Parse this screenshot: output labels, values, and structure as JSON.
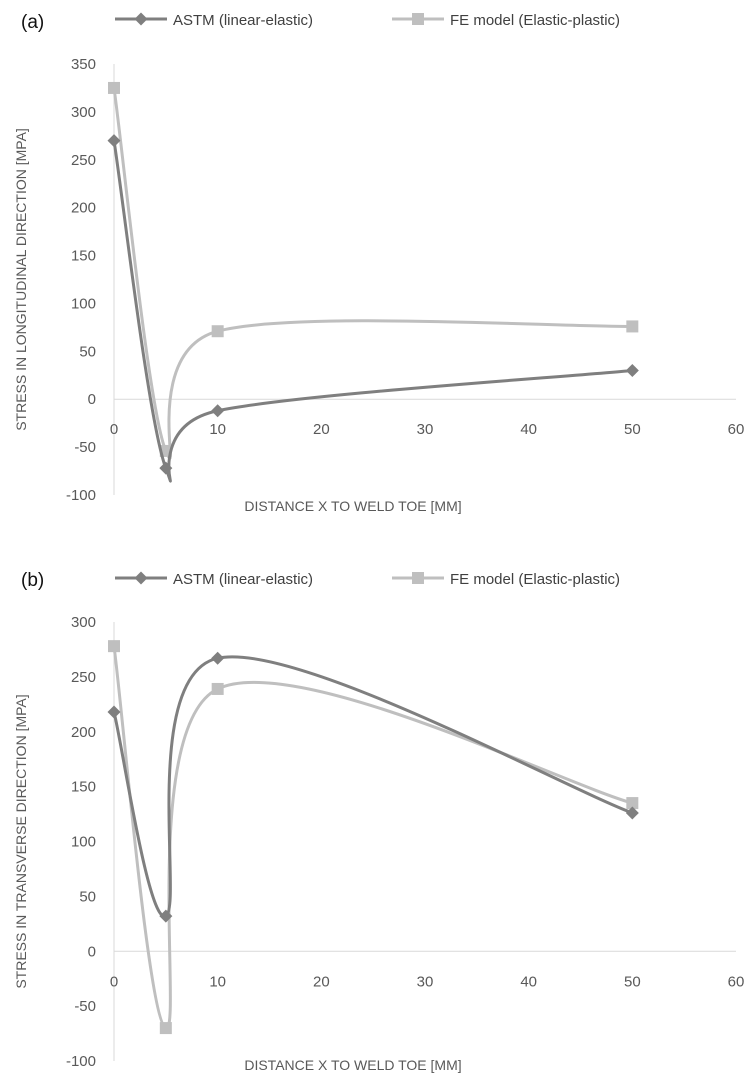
{
  "colors": {
    "astm": "#7f7f7f",
    "fe": "#bfbfbf",
    "axis": "#d9d9d9"
  },
  "chart_data": [
    {
      "panel": "(a)",
      "type": "line",
      "xlabel": "DISTANCE X TO WELD TOE [MM]",
      "ylabel": "STRESS IN LONGITUDINAL DIRECTION [MPA]",
      "xlim": [
        0,
        60
      ],
      "ylim": [
        -100,
        350
      ],
      "xticks": [
        0,
        10,
        20,
        30,
        40,
        50,
        60
      ],
      "yticks": [
        -100,
        -50,
        0,
        50,
        100,
        150,
        200,
        250,
        300,
        350
      ],
      "legend": "top",
      "grid": false,
      "smooth": true,
      "series": [
        {
          "name": "ASTM (linear-elastic)",
          "marker": "diamond",
          "x": [
            0,
            5,
            10,
            50
          ],
          "y": [
            270,
            -72,
            -12,
            30
          ]
        },
        {
          "name": "FE model (Elastic-plastic)",
          "marker": "square",
          "x": [
            0,
            5,
            10,
            50
          ],
          "y": [
            325,
            -54,
            71,
            76
          ]
        }
      ]
    },
    {
      "panel": "(b)",
      "type": "line",
      "xlabel": "DISTANCE X TO WELD TOE [MM]",
      "ylabel": "STRESS IN TRANSVERSE DIRECTION [MPA]",
      "xlim": [
        0,
        60
      ],
      "ylim": [
        -100,
        300
      ],
      "xticks": [
        0,
        10,
        20,
        30,
        40,
        50,
        60
      ],
      "yticks": [
        -100,
        -50,
        0,
        50,
        100,
        150,
        200,
        250,
        300
      ],
      "legend": "top",
      "grid": false,
      "smooth": true,
      "series": [
        {
          "name": "ASTM (linear-elastic)",
          "marker": "diamond",
          "x": [
            0,
            5,
            10,
            50
          ],
          "y": [
            218,
            32,
            267,
            126
          ]
        },
        {
          "name": "FE model (Elastic-plastic)",
          "marker": "square",
          "x": [
            0,
            5,
            10,
            50
          ],
          "y": [
            278,
            -70,
            239,
            135
          ]
        }
      ]
    }
  ]
}
